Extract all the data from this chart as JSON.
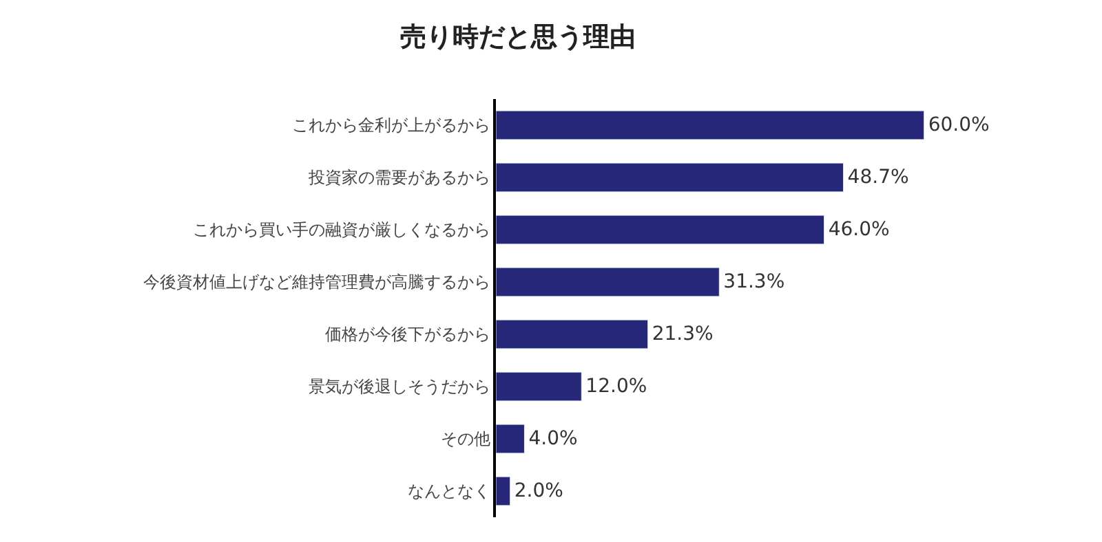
{
  "chart_data": {
    "type": "bar",
    "orientation": "horizontal",
    "title": "売り時だと思う理由",
    "categories": [
      "これから金利が上がるから",
      "投資家の需要があるから",
      "これから買い手の融資が厳しくなるから",
      "今後資材値上げなど維持管理費が高騰するから",
      "価格が今後下がるから",
      "景気が後退しそうだから",
      "その他",
      "なんとなく"
    ],
    "values": [
      60.0,
      48.7,
      46.0,
      31.3,
      21.3,
      12.0,
      4.0,
      2.0
    ],
    "value_labels": [
      "60.0%",
      "48.7%",
      "46.0%",
      "31.3%",
      "21.3%",
      "12.0%",
      "4.0%",
      "2.0%"
    ],
    "color": "#27277a",
    "tick_labels": "y",
    "legend": false
  }
}
